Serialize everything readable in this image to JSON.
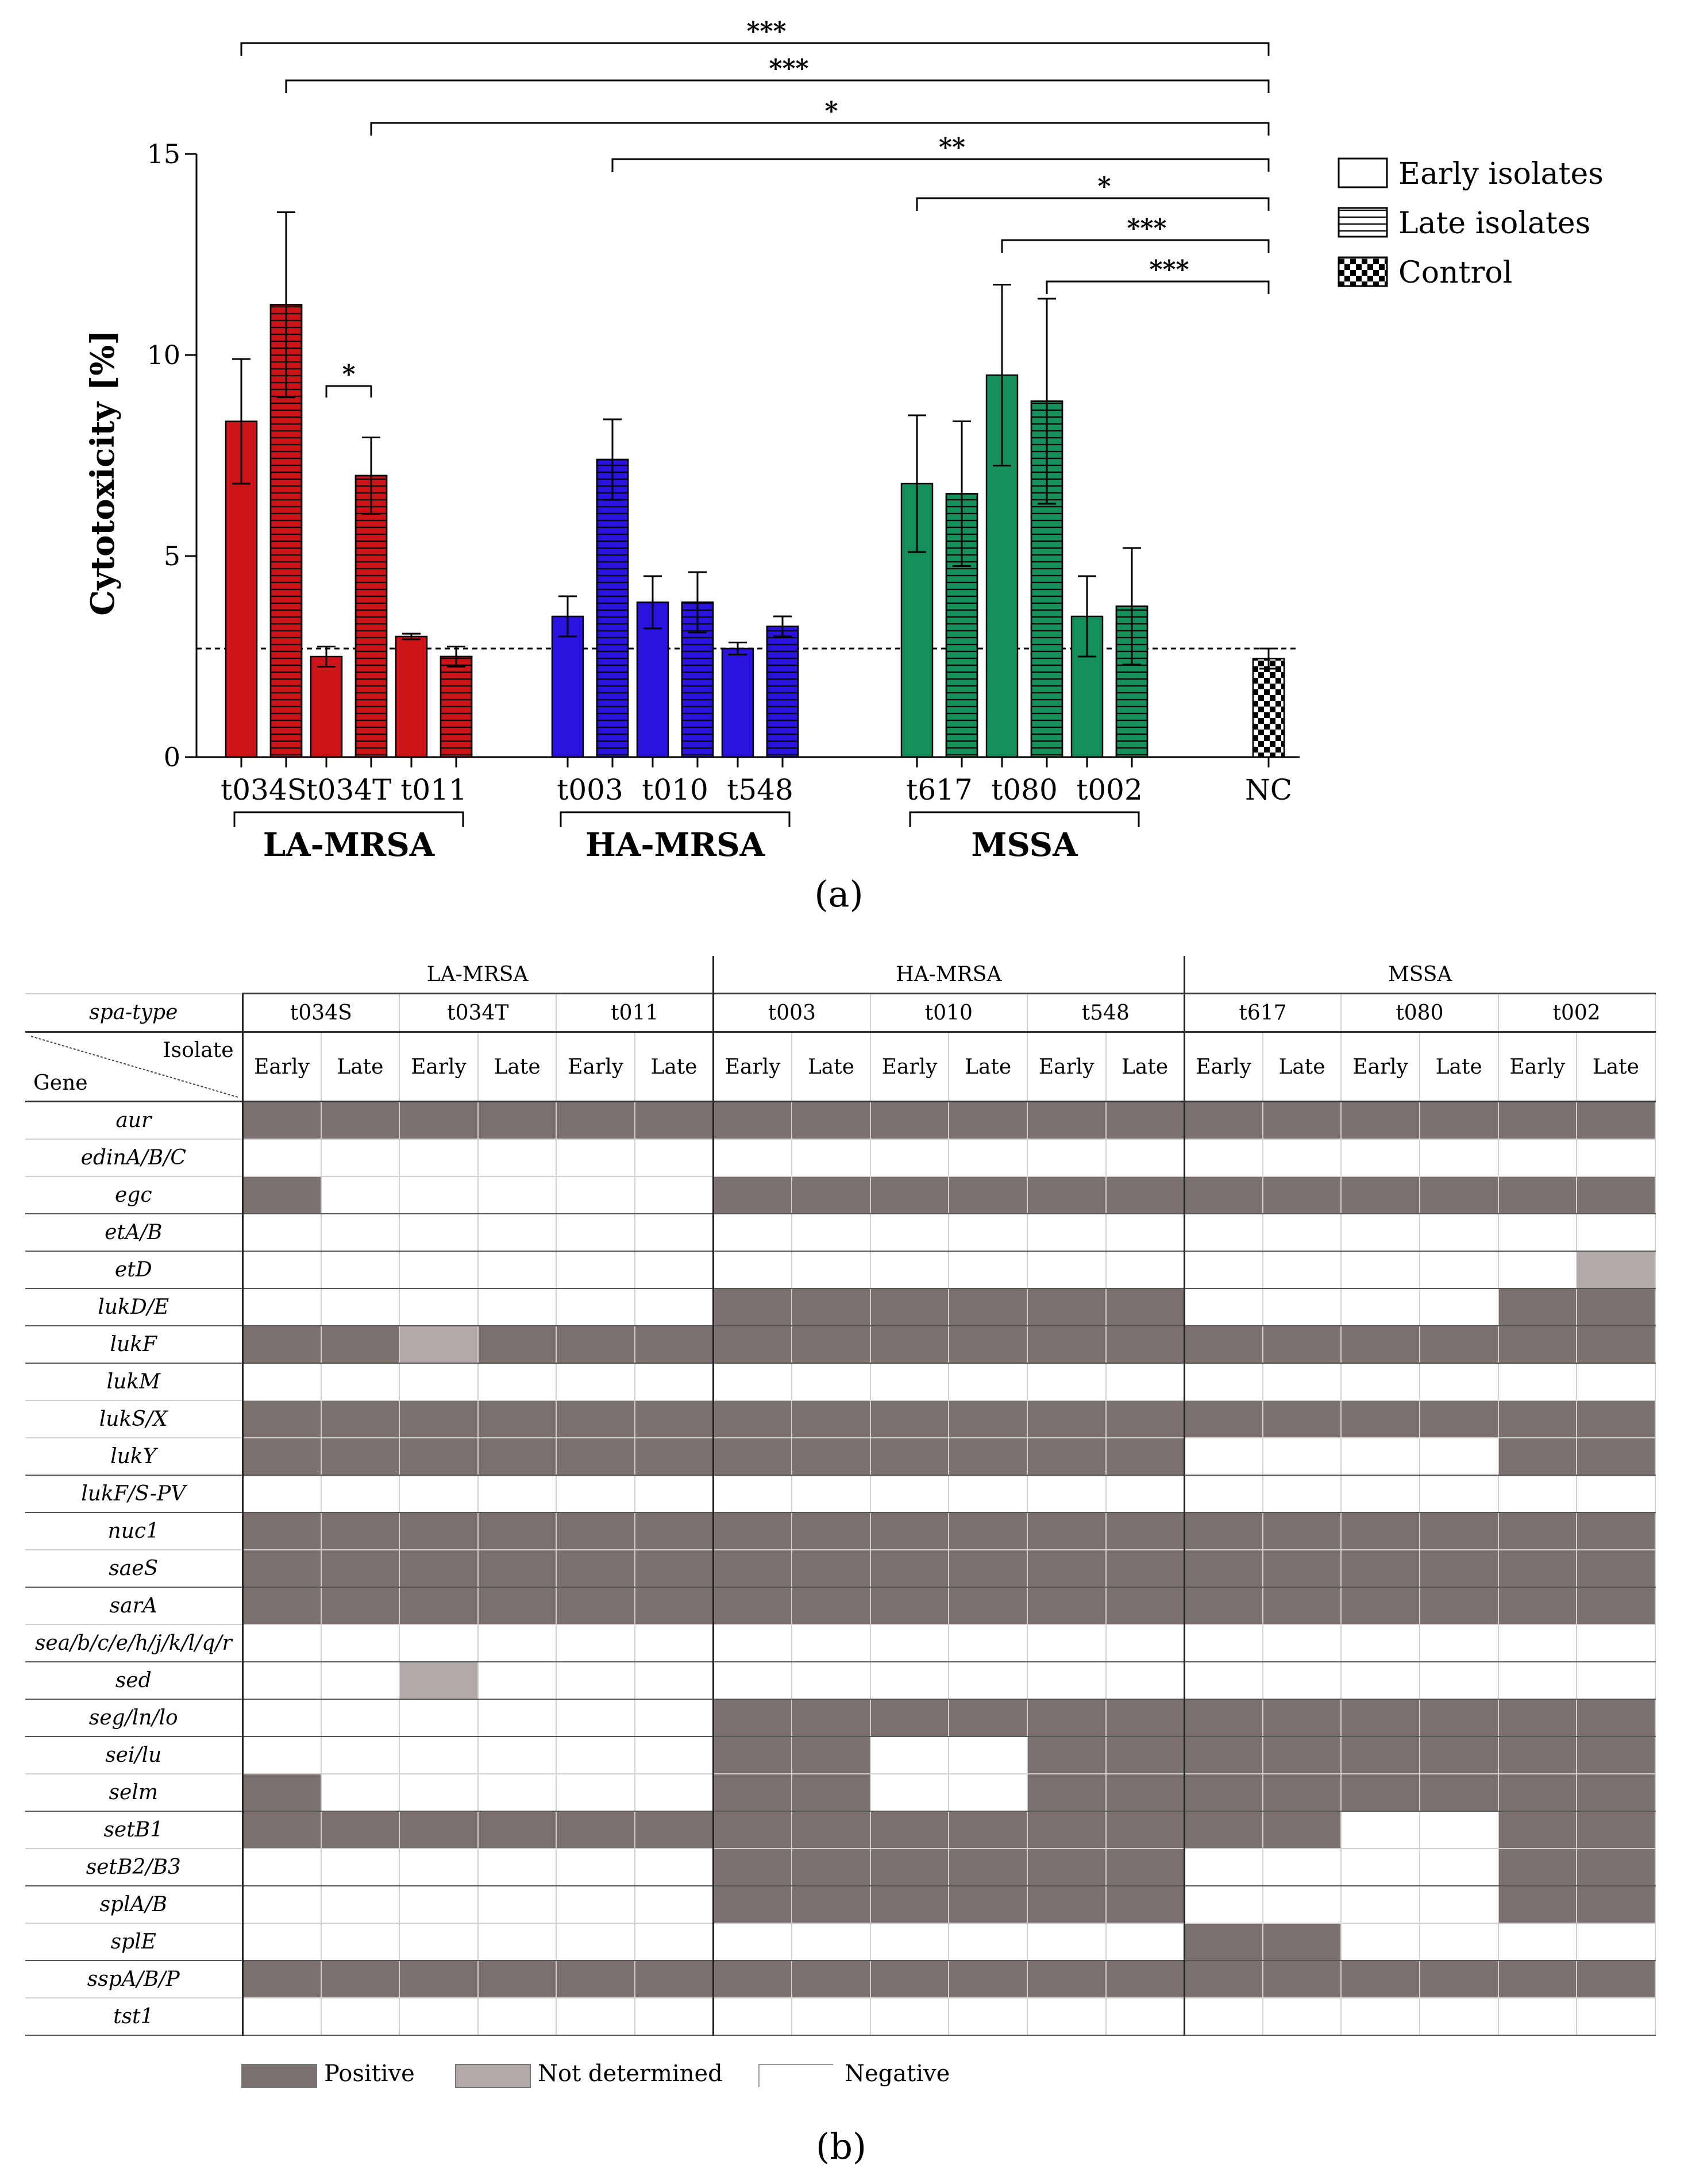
{
  "chart_data": {
    "type": "bar",
    "ylabel": "Cytotoxicity [%]",
    "ylim": [
      0,
      15
    ],
    "yticks": [
      "0",
      "5",
      "10",
      "15"
    ],
    "reference_line": 2.7,
    "series": [
      {
        "name": "Early isolates",
        "pattern": "solid"
      },
      {
        "name": "Late isolates",
        "pattern": "horizontal-lines"
      },
      {
        "name": "Control",
        "pattern": "checker"
      }
    ],
    "groups": [
      {
        "label": "LA-MRSA",
        "color": "#cc1418",
        "spa_types": [
          {
            "label": "t034S",
            "early": {
              "value": 8.35,
              "err": 1.55
            },
            "late": {
              "value": 11.25,
              "err": 2.3
            }
          },
          {
            "label": "t034T",
            "early": {
              "value": 2.5,
              "err": 0.25
            },
            "late": {
              "value": 7.0,
              "err": 0.95
            }
          },
          {
            "label": "t011",
            "early": {
              "value": 3.0,
              "err": 0.07
            },
            "late": {
              "value": 2.5,
              "err": 0.25
            }
          }
        ]
      },
      {
        "label": "HA-MRSA",
        "color": "#2a13de",
        "spa_types": [
          {
            "label": "t003",
            "early": {
              "value": 3.5,
              "err": 0.5
            },
            "late": {
              "value": 7.4,
              "err": 1.0
            }
          },
          {
            "label": "t010",
            "early": {
              "value": 3.85,
              "err": 0.65
            },
            "late": {
              "value": 3.85,
              "err": 0.75
            }
          },
          {
            "label": "t548",
            "early": {
              "value": 2.7,
              "err": 0.15
            },
            "late": {
              "value": 3.25,
              "err": 0.25
            }
          }
        ]
      },
      {
        "label": "MSSA",
        "color": "#16905a",
        "spa_types": [
          {
            "label": "t617",
            "early": {
              "value": 6.8,
              "err": 1.7
            },
            "late": {
              "value": 6.55,
              "err": 1.8
            }
          },
          {
            "label": "t080",
            "early": {
              "value": 9.5,
              "err": 2.25
            },
            "late": {
              "value": 8.85,
              "err": 2.55
            }
          },
          {
            "label": "t002",
            "early": {
              "value": 3.5,
              "err": 1.0
            },
            "late": {
              "value": 3.75,
              "err": 1.45
            }
          }
        ]
      }
    ],
    "control": {
      "label": "NC",
      "value": 2.45,
      "err": 0.25
    },
    "significance": [
      {
        "from": "t034S early",
        "to": "NC",
        "label": "***"
      },
      {
        "from": "t034S late",
        "to": "NC",
        "label": "***"
      },
      {
        "from": "t034T late",
        "to": "NC",
        "label": "*"
      },
      {
        "from": "t003 late",
        "to": "NC",
        "label": "**"
      },
      {
        "from": "t617 early",
        "to": "NC",
        "label": "*"
      },
      {
        "from": "t080 early",
        "to": "NC",
        "label": "***"
      },
      {
        "from": "t080 late",
        "to": "NC",
        "label": "***"
      },
      {
        "from": "t034T early",
        "to": "t034T late",
        "label": "*"
      }
    ]
  },
  "caption_a": "(a)",
  "caption_b": "(b)",
  "table": {
    "groups": [
      {
        "label": "LA-MRSA",
        "spa": [
          "t034S",
          "t034T",
          "t011"
        ]
      },
      {
        "label": "HA-MRSA",
        "spa": [
          "t003",
          "t010",
          "t548"
        ]
      },
      {
        "label": "MSSA",
        "spa": [
          "t617",
          "t080",
          "t002"
        ]
      }
    ],
    "spa_header": "spa-type",
    "corner_isolate": "Isolate",
    "corner_gene": "Gene",
    "early_label": "Early",
    "late_label": "Late",
    "rows": [
      {
        "gene": "aur",
        "cells": "PPPPPPPPPPPPPPPPPP"
      },
      {
        "gene": "edinA/B/C",
        "cells": "NNNNNNNNNNNNNNNNNN"
      },
      {
        "gene": "egc",
        "cells": "PNNNNNPPPPPPPPPPPP"
      },
      {
        "gene": "etA/B",
        "cells": "NNNNNNNNNNNNNNNNNN"
      },
      {
        "gene": "etD",
        "cells": "NNNNNNNNNNNNNNNNND"
      },
      {
        "gene": "lukD/E",
        "cells": "NNNNNNPPPPPPNNNNPP"
      },
      {
        "gene": "lukF",
        "cells": "PPDPPPPPPPPPPPPPPP"
      },
      {
        "gene": "lukM",
        "cells": "NNNNNNNNNNNNNNNNNN"
      },
      {
        "gene": "lukS/X",
        "cells": "PPPPPPPPPPPPPPPPPP"
      },
      {
        "gene": "lukY",
        "cells": "PPPPPPPPPPPPNNNNPP"
      },
      {
        "gene": "lukF/S-PV",
        "cells": "NNNNNNNNNNNNNNNNNN"
      },
      {
        "gene": "nuc1",
        "cells": "PPPPPPPPPPPPPPPPPP"
      },
      {
        "gene": "saeS",
        "cells": "PPPPPPPPPPPPPPPPPP"
      },
      {
        "gene": "sarA",
        "cells": "PPPPPPPPPPPPPPPPPP"
      },
      {
        "gene": "sea/b/c/e/h/j/k/l/q/r",
        "cells": "NNNNNNNNNNNNNNNNNN"
      },
      {
        "gene": "sed",
        "cells": "NNDNNNNNNNNNNNNNNN"
      },
      {
        "gene": "seg/ln/lo",
        "cells": "NNNNNNPPPPPPPPPPPP"
      },
      {
        "gene": "sei/lu",
        "cells": "NNNNNNPPNNPPPPPPPP"
      },
      {
        "gene": "selm",
        "cells": "PNNNNNPPNNPPPPPPPP"
      },
      {
        "gene": "setB1",
        "cells": "PPPPPPPPPPPPPPNNPP"
      },
      {
        "gene": "setB2/B3",
        "cells": "NNNNNNPPPPPPNNNNPP"
      },
      {
        "gene": "splA/B",
        "cells": "NNNNNNPPPPPPNNNNPP"
      },
      {
        "gene": "splE",
        "cells": "NNNNNNNNNNNNPPNNNN"
      },
      {
        "gene": "sspA/B/P",
        "cells": "PPPPPPPPPPPPPPPPPP"
      },
      {
        "gene": "tst1",
        "cells": "NNNNNNNNNNNNNNNNNN"
      }
    ],
    "group_breaks": [
      0,
      3,
      4,
      5,
      6,
      7,
      10,
      11,
      13,
      15,
      16,
      17,
      19,
      21,
      23
    ],
    "colors": {
      "positive": "#7a716f",
      "not_determined": "#b1aaa8",
      "negative": "#ffffff"
    }
  },
  "legend_b": {
    "positive": "Positive",
    "not_determined": "Not determined",
    "negative": "Negative"
  }
}
